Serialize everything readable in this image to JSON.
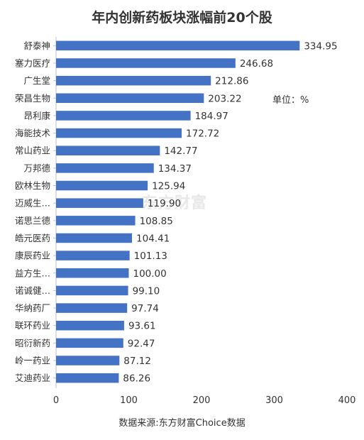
{
  "chart_data": {
    "type": "bar",
    "orientation": "horizontal",
    "title": "年内创新药板块涨幅前20个股",
    "unit_label": "单位：%",
    "source": "数据来源:东方财富Choice数据",
    "watermark": "东方财富",
    "categories": [
      "舒泰神",
      "塞力医疗",
      "广生堂",
      "荣昌生物",
      "昂利康",
      "海能技术",
      "常山药业",
      "万邦德",
      "欧林生物",
      "迈威生…",
      "诺思兰德",
      "皓元医药",
      "康辰药业",
      "益方生…",
      "诺诚健…",
      "华纳药厂",
      "联环药业",
      "昭衍新药",
      "岭一药业",
      "艾迪药业"
    ],
    "values": [
      334.95,
      246.68,
      212.86,
      203.22,
      184.97,
      172.72,
      142.77,
      134.37,
      125.94,
      119.9,
      108.85,
      104.41,
      101.13,
      100.0,
      99.1,
      97.74,
      93.61,
      92.47,
      87.12,
      86.26
    ],
    "value_labels": [
      "334.95",
      "246.68",
      "212.86",
      "203.22",
      "184.97",
      "172.72",
      "142.77",
      "134.37",
      "125.94",
      "119.90",
      "108.85",
      "104.41",
      "101.13",
      "100.00",
      "99.10",
      "97.74",
      "93.61",
      "92.47",
      "87.12",
      "86.26"
    ],
    "xlim": [
      0,
      400
    ],
    "xticks": [
      "0",
      "100",
      "200",
      "300",
      "400"
    ],
    "grid": false,
    "bar_color": "#4472c4",
    "text_color": "#333333"
  }
}
